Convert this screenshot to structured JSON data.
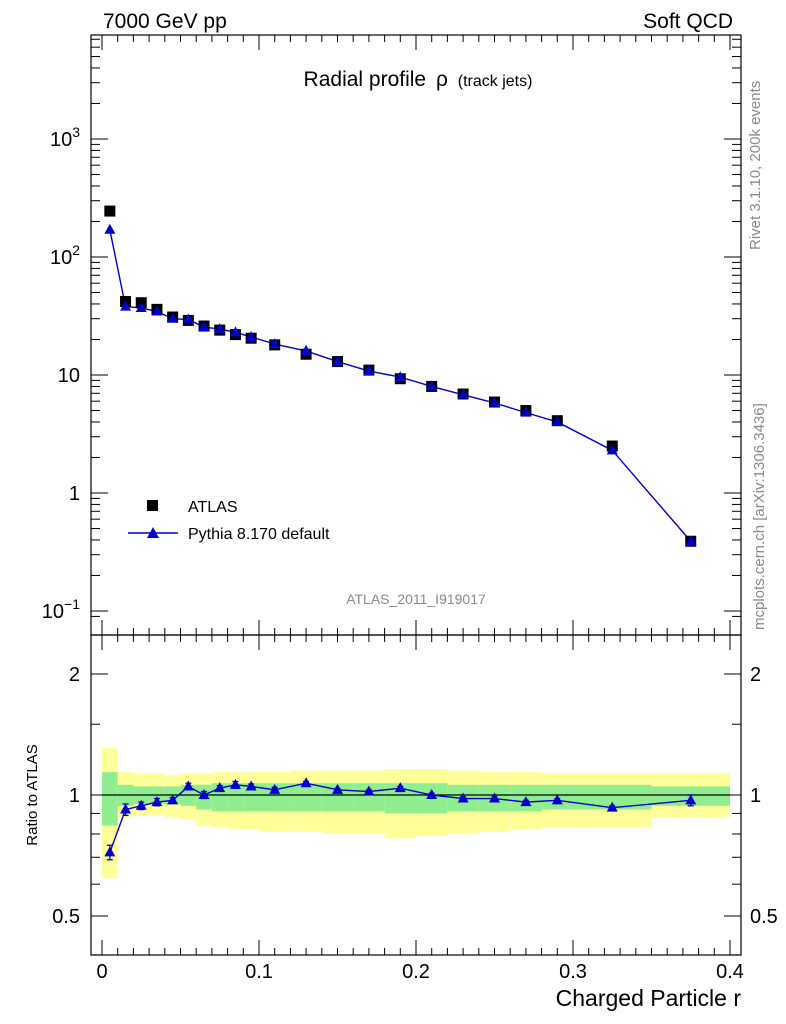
{
  "header": {
    "left": "7000 GeV pp",
    "right": "Soft QCD"
  },
  "side_text": {
    "rivet": "Rivet 3.1.10,  200k events",
    "site": "mcplots.cern.ch [arXiv:1306.3436]"
  },
  "watermark": "ATLAS_2011_I919017",
  "chart_data": [
    {
      "type": "scatter",
      "title": "Radial profile ρ (track jets)",
      "title_main": "Radial profile",
      "title_rho": "ρ",
      "title_sub": "(track jets)",
      "xlabel": "Charged Particle r",
      "ylabel": "",
      "yscale": "log",
      "xlim": [
        0,
        0.4
      ],
      "ylim": [
        0.1,
        8000
      ],
      "ytick_labels": [
        {
          "v": 1000,
          "base": "10",
          "exp": "3"
        },
        {
          "v": 100,
          "base": "10",
          "exp": "2"
        },
        {
          "v": 10,
          "base": "10",
          "exp": ""
        },
        {
          "v": 1,
          "base": "1",
          "exp": ""
        },
        {
          "v": 0.1,
          "base": "10",
          "exp": "−1"
        }
      ],
      "legend_position": "bottom-left",
      "series": [
        {
          "name": "ATLAS",
          "marker": "square",
          "color": "#000000",
          "x": [
            0.005,
            0.015,
            0.025,
            0.035,
            0.045,
            0.055,
            0.065,
            0.075,
            0.085,
            0.095,
            0.11,
            0.13,
            0.15,
            0.17,
            0.19,
            0.21,
            0.23,
            0.25,
            0.27,
            0.29,
            0.325,
            0.375
          ],
          "y": [
            245,
            42,
            41,
            36,
            31,
            29,
            26,
            24,
            22,
            20.5,
            18,
            15,
            13,
            11,
            9.3,
            8.0,
            6.9,
            5.9,
            5.0,
            4.1,
            2.5,
            0.39
          ]
        },
        {
          "name": "Pythia 8.170 default",
          "marker": "triangle",
          "color": "#0000cc",
          "x": [
            0.005,
            0.015,
            0.025,
            0.035,
            0.045,
            0.055,
            0.065,
            0.075,
            0.085,
            0.095,
            0.11,
            0.13,
            0.15,
            0.17,
            0.19,
            0.21,
            0.23,
            0.25,
            0.27,
            0.29,
            0.325,
            0.375
          ],
          "y": [
            170,
            38,
            37,
            34.5,
            30,
            29.5,
            25.5,
            24.5,
            23,
            21,
            18.3,
            16,
            13,
            10.8,
            9.6,
            8.0,
            6.8,
            5.8,
            4.8,
            4.0,
            2.3,
            0.39
          ]
        }
      ]
    },
    {
      "type": "scatter",
      "ylabel": "Ratio to ATLAS",
      "xlabel": "Charged Particle r",
      "xlim": [
        0,
        0.4
      ],
      "ylim": [
        0.35,
        2.25
      ],
      "xtick_labels": [
        "0",
        "0.1",
        "0.2",
        "0.3",
        "0.4"
      ],
      "ytick_labels": [
        "0.5",
        "1",
        "2"
      ],
      "reference": 1,
      "bands": {
        "x_edges": [
          0.0,
          0.01,
          0.02,
          0.03,
          0.04,
          0.05,
          0.06,
          0.07,
          0.08,
          0.09,
          0.1,
          0.12,
          0.14,
          0.16,
          0.18,
          0.2,
          0.22,
          0.24,
          0.26,
          0.28,
          0.3,
          0.35,
          0.4
        ],
        "inner_color": "#90ee90",
        "outer_color": "#ffff99",
        "inner_low": [
          0.84,
          0.94,
          0.95,
          0.95,
          0.95,
          0.94,
          0.92,
          0.91,
          0.91,
          0.91,
          0.91,
          0.91,
          0.91,
          0.91,
          0.9,
          0.9,
          0.91,
          0.91,
          0.91,
          0.92,
          0.92,
          0.94
        ],
        "inner_high": [
          1.14,
          1.06,
          1.05,
          1.05,
          1.05,
          1.06,
          1.06,
          1.07,
          1.07,
          1.07,
          1.07,
          1.07,
          1.07,
          1.07,
          1.07,
          1.07,
          1.06,
          1.06,
          1.06,
          1.06,
          1.06,
          1.05
        ],
        "outer_low": [
          0.62,
          0.88,
          0.89,
          0.89,
          0.88,
          0.87,
          0.84,
          0.83,
          0.82,
          0.82,
          0.81,
          0.81,
          0.8,
          0.8,
          0.78,
          0.79,
          0.8,
          0.81,
          0.82,
          0.83,
          0.83,
          0.88
        ],
        "outer_high": [
          1.31,
          1.14,
          1.13,
          1.13,
          1.12,
          1.13,
          1.13,
          1.14,
          1.14,
          1.14,
          1.14,
          1.15,
          1.15,
          1.15,
          1.16,
          1.16,
          1.15,
          1.14,
          1.14,
          1.13,
          1.13,
          1.13
        ]
      },
      "series": [
        {
          "name": "Pythia 8.170 default",
          "marker": "triangle",
          "color": "#0000cc",
          "x": [
            0.005,
            0.015,
            0.025,
            0.035,
            0.045,
            0.055,
            0.065,
            0.075,
            0.085,
            0.095,
            0.11,
            0.13,
            0.15,
            0.17,
            0.19,
            0.21,
            0.23,
            0.25,
            0.27,
            0.29,
            0.325,
            0.375
          ],
          "y": [
            0.72,
            0.92,
            0.94,
            0.96,
            0.97,
            1.05,
            1.0,
            1.04,
            1.06,
            1.05,
            1.03,
            1.07,
            1.03,
            1.02,
            1.04,
            1.0,
            0.98,
            0.98,
            0.96,
            0.97,
            0.93,
            0.97
          ],
          "err": [
            0.03,
            0.03,
            0.02,
            0.02,
            0.015,
            0.02,
            0.02,
            0.015,
            0.02,
            0.015,
            0.015,
            0.01,
            0.01,
            0.01,
            0.01,
            0.01,
            0.01,
            0.01,
            0.01,
            0.01,
            0.01,
            0.03
          ]
        }
      ]
    }
  ]
}
